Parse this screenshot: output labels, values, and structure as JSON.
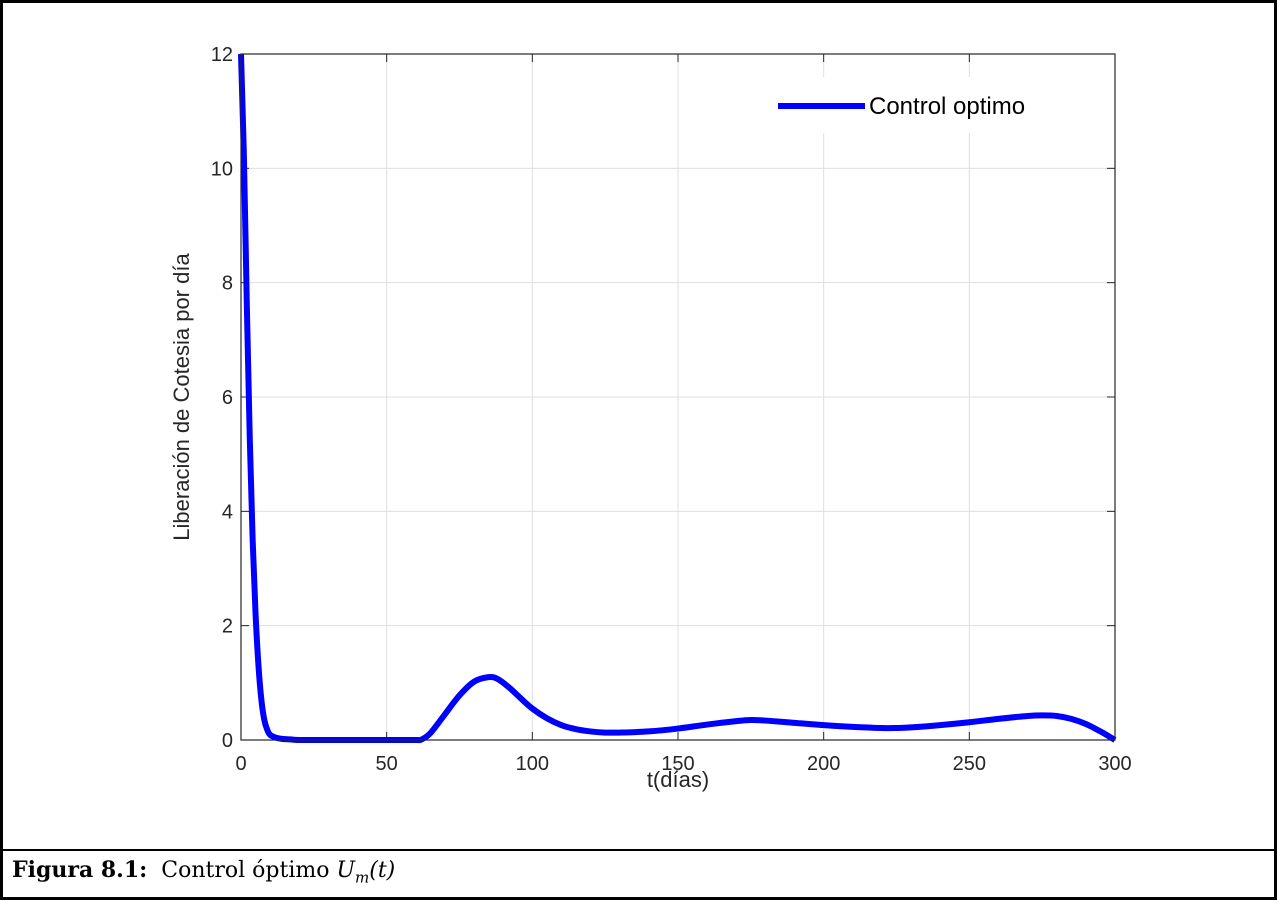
{
  "chart_data": {
    "type": "line",
    "xlabel": "t(días)",
    "ylabel": "Liberación de Cotesia por día",
    "xlim": [
      0,
      300
    ],
    "ylim": [
      0,
      12
    ],
    "xticks": [
      0,
      50,
      100,
      150,
      200,
      250,
      300
    ],
    "yticks": [
      0,
      2,
      4,
      6,
      8,
      10,
      12
    ],
    "grid": true,
    "legend_position": "top-right",
    "series": [
      {
        "name": "Control optimo",
        "color": "#0000ff",
        "x": [
          0,
          1,
          2,
          3,
          4,
          5,
          6,
          7,
          8,
          9,
          10,
          12,
          14,
          17,
          20,
          30,
          40,
          50,
          60,
          62,
          65,
          70,
          75,
          80,
          85,
          88,
          92,
          96,
          100,
          105,
          110,
          115,
          120,
          125,
          130,
          140,
          150,
          160,
          170,
          175,
          180,
          190,
          200,
          210,
          220,
          225,
          230,
          240,
          250,
          260,
          270,
          275,
          280,
          285,
          290,
          295,
          300
        ],
        "y": [
          12,
          10.2,
          7.6,
          5.3,
          3.5,
          2.2,
          1.3,
          0.7,
          0.35,
          0.18,
          0.09,
          0.04,
          0.02,
          0.01,
          0,
          0,
          0,
          0,
          0,
          0.01,
          0.12,
          0.45,
          0.78,
          1.02,
          1.1,
          1.07,
          0.92,
          0.73,
          0.55,
          0.38,
          0.26,
          0.19,
          0.15,
          0.13,
          0.13,
          0.15,
          0.2,
          0.27,
          0.33,
          0.35,
          0.34,
          0.3,
          0.26,
          0.23,
          0.21,
          0.21,
          0.22,
          0.26,
          0.31,
          0.37,
          0.42,
          0.43,
          0.42,
          0.37,
          0.28,
          0.15,
          0
        ]
      }
    ]
  },
  "caption": {
    "label": "Figura 8.1:",
    "text": "Control óptimo",
    "math_symbol": "U",
    "math_subscript": "m",
    "math_arg": "(t)"
  }
}
